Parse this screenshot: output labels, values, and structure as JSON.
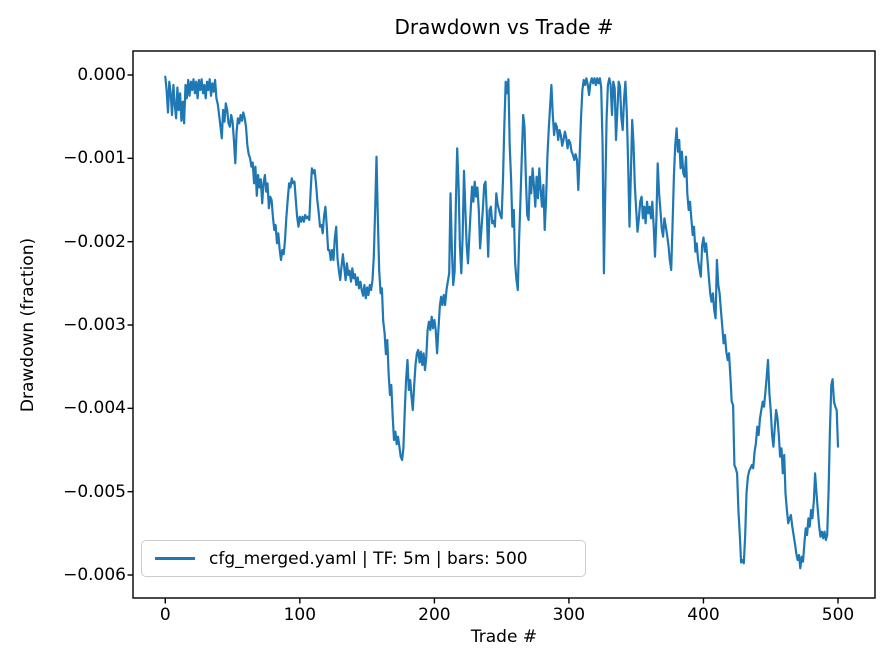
{
  "figure": {
    "background": "#ffffff",
    "spine_color": "#000000",
    "tick_color": "#000000"
  },
  "legend": {
    "label": "cfg_merged.yaml | TF: 5m | bars: 500",
    "border_color": "#cccccc",
    "line_color": "#1f77b4",
    "position": "lower left"
  },
  "chart_data": {
    "type": "line",
    "title": "Drawdown vs Trade #",
    "xlabel": "Trade #",
    "ylabel": "Drawdown (fraction)",
    "grid": false,
    "xlim": [
      -24,
      527.5
    ],
    "ylim": [
      0.000288,
      -0.006276
    ],
    "x_ticks": [
      {
        "label": "0",
        "value": 0
      },
      {
        "label": "100",
        "value": 100
      },
      {
        "label": "200",
        "value": 200
      },
      {
        "label": "300",
        "value": 300
      },
      {
        "label": "400",
        "value": 400
      },
      {
        "label": "500",
        "value": 500
      }
    ],
    "y_ticks": [
      {
        "label": "0.000",
        "value": 0
      },
      {
        "label": "−0.001",
        "value": -0.001
      },
      {
        "label": "−0.002",
        "value": -0.002
      },
      {
        "label": "−0.003",
        "value": -0.003
      },
      {
        "label": "−0.004",
        "value": -0.004
      },
      {
        "label": "−0.005",
        "value": -0.005
      },
      {
        "label": "−0.006",
        "value": -0.006
      }
    ],
    "series": [
      {
        "name": "cfg_merged.yaml | TF: 5m | bars: 500",
        "color": "#1f77b4",
        "line_width": 2.2,
        "x_start": 0,
        "x_step": 1,
        "y": [
          -2e-05,
          -0.00018,
          -0.00045,
          -8e-05,
          -0.00022,
          -0.00048,
          -0.00012,
          -0.00035,
          -0.00052,
          -0.00015,
          -0.00042,
          -0.00022,
          -0.00055,
          -0.00032,
          -0.00058,
          -0.00012,
          -0.00028,
          -6e-05,
          -0.00025,
          -8e-05,
          -0.00018,
          -5e-05,
          -0.00022,
          -8e-05,
          -0.00028,
          -6e-05,
          -0.00018,
          -5e-05,
          -0.00022,
          -0.00012,
          -0.00028,
          -8e-05,
          -0.00018,
          -5e-05,
          -0.00025,
          -0.0001,
          -0.0002,
          -6e-05,
          -0.00028,
          -0.00035,
          -0.00048,
          -0.00062,
          -0.00076,
          -0.00042,
          -0.00056,
          -0.00034,
          -0.00042,
          -0.00058,
          -0.00062,
          -0.00048,
          -0.00056,
          -0.00078,
          -0.00106,
          -0.00068,
          -0.00052,
          -0.00058,
          -0.00048,
          -0.00055,
          -0.00045,
          -0.00052,
          -0.00062,
          -0.00085,
          -0.00095,
          -0.001,
          -0.0011,
          -0.00105,
          -0.0013,
          -0.0011,
          -0.00145,
          -0.0012,
          -0.00135,
          -0.00125,
          -0.00154,
          -0.0013,
          -0.0012,
          -0.0014,
          -0.0013,
          -0.0016,
          -0.00146,
          -0.0015,
          -0.0017,
          -0.00186,
          -0.0018,
          -0.00202,
          -0.0019,
          -0.0021,
          -0.00222,
          -0.0021,
          -0.00215,
          -0.00198,
          -0.0017,
          -0.0015,
          -0.0013,
          -0.00135,
          -0.00124,
          -0.0013,
          -0.00128,
          -0.0015,
          -0.0017,
          -0.00182,
          -0.0017,
          -0.00176,
          -0.0017,
          -0.00176,
          -0.00168,
          -0.00172,
          -0.0017,
          -0.00174,
          -0.0014,
          -0.00112,
          -0.00118,
          -0.00114,
          -0.0013,
          -0.0015,
          -0.00165,
          -0.00182,
          -0.0018,
          -0.0019,
          -0.0017,
          -0.00158,
          -0.0018,
          -0.0021,
          -0.0021,
          -0.00222,
          -0.0021,
          -0.00222,
          -0.00196,
          -0.00182,
          -0.0022,
          -0.00234,
          -0.00246,
          -0.0023,
          -0.00215,
          -0.0023,
          -0.00246,
          -0.00226,
          -0.0024,
          -0.00235,
          -0.00248,
          -0.00232,
          -0.00244,
          -0.00239,
          -0.00252,
          -0.00243,
          -0.00256,
          -0.00248,
          -0.00258,
          -0.00265,
          -0.00252,
          -0.00268,
          -0.00255,
          -0.00264,
          -0.00252,
          -0.00258,
          -0.00246,
          -0.00218,
          -0.0016,
          -0.00098,
          -0.00175,
          -0.00235,
          -0.00262,
          -0.00256,
          -0.00295,
          -0.0031,
          -0.00335,
          -0.00318,
          -0.00358,
          -0.00384,
          -0.00372,
          -0.0041,
          -0.00438,
          -0.00428,
          -0.00443,
          -0.00434,
          -0.00446,
          -0.00458,
          -0.00462,
          -0.00448,
          -0.00402,
          -0.00365,
          -0.00342,
          -0.00378,
          -0.00366,
          -0.00386,
          -0.00402,
          -0.00372,
          -0.00348,
          -0.00334,
          -0.0033,
          -0.00345,
          -0.00332,
          -0.00348,
          -0.00334,
          -0.00354,
          -0.00338,
          -0.00306,
          -0.00296,
          -0.00306,
          -0.0029,
          -0.00304,
          -0.00294,
          -0.00306,
          -0.00334,
          -0.00306,
          -0.00278,
          -0.00266,
          -0.00276,
          -0.00264,
          -0.00276,
          -0.00258,
          -0.00248,
          -0.00238,
          -0.00142,
          -0.0021,
          -0.00252,
          -0.00236,
          -0.00152,
          -0.00088,
          -0.00134,
          -0.00205,
          -0.00238,
          -0.00195,
          -0.00115,
          -0.0016,
          -0.00205,
          -0.00226,
          -0.00192,
          -0.00162,
          -0.00134,
          -0.00152,
          -0.00128,
          -0.00146,
          -0.00135,
          -0.00162,
          -0.00208,
          -0.00184,
          -0.00162,
          -0.00132,
          -0.00128,
          -0.00165,
          -0.00218,
          -0.00162,
          -0.00158,
          -0.00178,
          -0.00175,
          -0.00182,
          -0.00142,
          -0.00155,
          -0.00162,
          -0.00168,
          -0.00172,
          -0.00125,
          -0.00062,
          -8e-05,
          -0.00022,
          -5e-05,
          -0.00085,
          -0.00125,
          -0.00182,
          -0.00162,
          -0.00225,
          -0.00245,
          -0.00258,
          -0.00198,
          -0.00148,
          -0.00098,
          -0.00048,
          -0.00062,
          -0.00125,
          -0.00168,
          -0.00174,
          -0.00122,
          -0.00142,
          -0.00112,
          -0.00132,
          -0.00158,
          -0.00122,
          -0.00148,
          -0.00112,
          -0.00138,
          -0.00158,
          -0.00132,
          -0.00186,
          -0.00152,
          -0.00098,
          -0.00066,
          -0.00038,
          -0.00012,
          -0.00048,
          -0.00072,
          -0.00058,
          -0.00062,
          -0.00078,
          -0.00066,
          -0.00072,
          -0.00085,
          -0.00078,
          -0.00068,
          -0.00075,
          -0.00088,
          -0.00078,
          -0.00082,
          -0.00092,
          -0.00096,
          -0.00102,
          -0.00095,
          -0.00102,
          -0.00138,
          -0.00096,
          -0.00052,
          -0.00018,
          -6e-05,
          -0.00012,
          -4e-05,
          -0.00012,
          -0.00024,
          -0.0001,
          -4e-05,
          -0.0001,
          -4e-05,
          -0.00012,
          -4e-05,
          -0.0001,
          -4e-05,
          -0.00015,
          -0.00085,
          -0.00238,
          -0.00145,
          -0.00052,
          -0.00012,
          -4e-05,
          -0.00012,
          -0.00048,
          -8e-05,
          -0.00016,
          -0.00078,
          -0.00042,
          -8e-05,
          -0.00014,
          -0.00052,
          -0.00066,
          -0.00028,
          -8e-05,
          -0.00045,
          -0.00105,
          -0.00182,
          -0.00122,
          -0.00054,
          -0.00082,
          -0.00132,
          -0.00162,
          -0.00188,
          -0.00172,
          -0.00152,
          -0.00146,
          -0.00172,
          -0.00158,
          -0.00178,
          -0.00152,
          -0.00166,
          -0.00158,
          -0.00172,
          -0.00152,
          -0.00182,
          -0.00218,
          -0.00172,
          -0.00106,
          -0.00142,
          -0.00162,
          -0.00185,
          -0.00194,
          -0.00172,
          -0.00182,
          -0.00192,
          -0.00205,
          -0.00222,
          -0.00234,
          -0.00182,
          -0.00122,
          -0.00085,
          -0.00064,
          -0.00092,
          -0.00078,
          -0.00112,
          -0.00092,
          -0.00118,
          -0.00122,
          -0.00098,
          -0.00142,
          -0.00162,
          -0.00152,
          -0.00172,
          -0.00192,
          -0.00182,
          -0.00212,
          -0.00202,
          -0.00222,
          -0.00232,
          -0.00242,
          -0.00205,
          -0.00195,
          -0.00212,
          -0.00202,
          -0.00222,
          -0.00242,
          -0.00262,
          -0.00272,
          -0.00262,
          -0.00282,
          -0.00292,
          -0.00222,
          -0.00252,
          -0.00262,
          -0.00282,
          -0.00302,
          -0.00322,
          -0.00312,
          -0.00332,
          -0.00342,
          -0.00334,
          -0.00362,
          -0.00392,
          -0.00396,
          -0.00468,
          -0.00472,
          -0.00478,
          -0.00522,
          -0.00552,
          -0.00585,
          -0.00582,
          -0.00586,
          -0.00552,
          -0.00502,
          -0.00482,
          -0.00475,
          -0.00472,
          -0.00468,
          -0.00472,
          -0.00452,
          -0.00442,
          -0.00422,
          -0.00432,
          -0.00412,
          -0.00402,
          -0.00392,
          -0.00398,
          -0.00382,
          -0.00362,
          -0.00342,
          -0.00382,
          -0.00402,
          -0.00432,
          -0.00446,
          -0.00422,
          -0.00402,
          -0.00412,
          -0.00432,
          -0.00458,
          -0.00448,
          -0.00478,
          -0.00456,
          -0.00502,
          -0.00522,
          -0.00538,
          -0.00532,
          -0.00528,
          -0.00542,
          -0.00552,
          -0.00562,
          -0.00574,
          -0.00582,
          -0.00576,
          -0.00592,
          -0.00578,
          -0.00584,
          -0.00562,
          -0.00544,
          -0.00552,
          -0.00532,
          -0.00542,
          -0.00522,
          -0.00532,
          -0.00512,
          -0.00478,
          -0.00502,
          -0.00522,
          -0.00542,
          -0.00554,
          -0.00548,
          -0.00556,
          -0.00548,
          -0.00558,
          -0.00552,
          -0.00498,
          -0.00428,
          -0.00372,
          -0.00365,
          -0.00392,
          -0.00398,
          -0.00402,
          -0.00446
        ]
      }
    ]
  }
}
